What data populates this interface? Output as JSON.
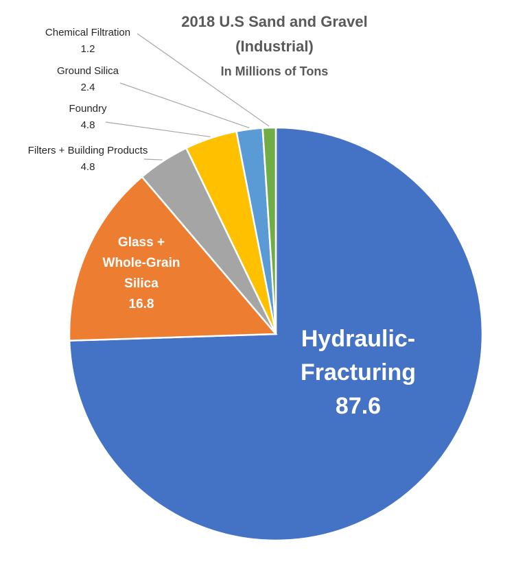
{
  "chart_data": {
    "type": "pie",
    "title": "2018 U.S Sand and Gravel",
    "title_line2": "(Industrial)",
    "subtitle": "In Millions of Tons",
    "start": "12 o'clock",
    "direction": "clockwise",
    "slices": [
      {
        "label": "Hydraulic-Fracturing",
        "label_lines": [
          "Hydraulic-",
          "Fracturing"
        ],
        "value": 87.6,
        "value_text": "87.6",
        "color": "#4472C4",
        "label_placement": "inside"
      },
      {
        "label": "Glass + Whole-Grain Silica",
        "label_lines": [
          "Glass +",
          "Whole-Grain",
          "Silica"
        ],
        "value": 16.8,
        "value_text": "16.8",
        "color": "#ED7D31",
        "label_placement": "inside"
      },
      {
        "label": "Filters + Building Products",
        "label_lines": [
          "Filters + Building Products"
        ],
        "value": 4.8,
        "value_text": "4.8",
        "color": "#A5A5A5",
        "label_placement": "outside"
      },
      {
        "label": "Foundry",
        "label_lines": [
          "Foundry"
        ],
        "value": 4.8,
        "value_text": "4.8",
        "color": "#FFC000",
        "label_placement": "outside"
      },
      {
        "label": "Ground Silica",
        "label_lines": [
          "Ground Silica"
        ],
        "value": 2.4,
        "value_text": "2.4",
        "color": "#5B9BD5",
        "label_placement": "outside"
      },
      {
        "label": "Chemical Filtration",
        "label_lines": [
          "Chemical Filtration"
        ],
        "value": 1.2,
        "value_text": "1.2",
        "color": "#70AD47",
        "label_placement": "outside"
      }
    ]
  }
}
